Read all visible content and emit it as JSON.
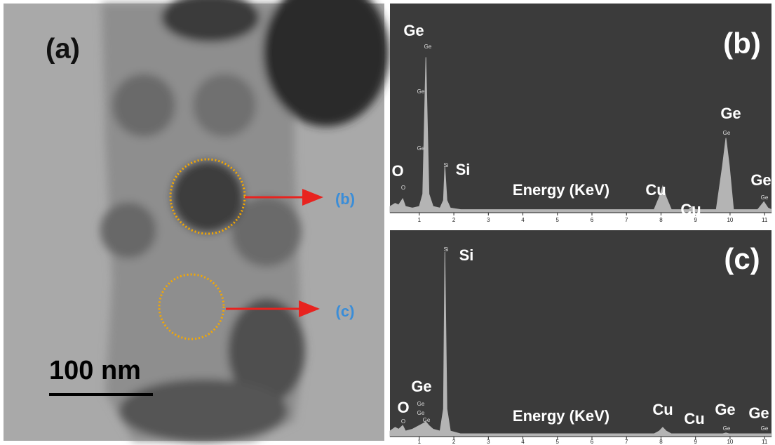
{
  "image": {
    "label": "(a)",
    "scale_bar": "100 nm",
    "markers": [
      "(b)",
      "(c)"
    ]
  },
  "chart_data": [
    {
      "type": "area",
      "panel_label": "(b)",
      "xlabel": "Energy (KeV)",
      "color": "#b4b4b4",
      "background": "#3b3b3b",
      "x": [
        0.15,
        0.3,
        0.4,
        0.52,
        0.6,
        0.8,
        1.0,
        1.1,
        1.19,
        1.28,
        1.4,
        1.6,
        1.7,
        1.74,
        1.8,
        1.9,
        2.2,
        3,
        4,
        5,
        6,
        7,
        7.8,
        7.95,
        8.05,
        8.15,
        8.3,
        8.8,
        8.9,
        9.0,
        9.6,
        9.78,
        9.88,
        9.98,
        10.1,
        10.8,
        10.98,
        11.1,
        11.2
      ],
      "values": [
        4,
        6,
        5,
        9,
        4,
        3,
        4,
        12,
        100,
        12,
        4,
        3,
        8,
        30,
        8,
        3,
        2,
        2,
        2,
        2,
        2,
        2,
        2,
        10,
        17,
        10,
        2,
        2,
        4,
        2,
        2,
        30,
        48,
        30,
        2,
        2,
        7,
        3,
        2
      ],
      "xlim": [
        0.15,
        11.2
      ],
      "xticks": [
        1,
        2,
        3,
        4,
        5,
        6,
        7,
        8,
        9,
        10,
        11
      ],
      "ylim": [
        0,
        130
      ],
      "labels": [
        "Ge",
        "O",
        "Si",
        "Cu",
        "Cu",
        "Ge",
        "Ge"
      ],
      "peak_labels": [
        "Ge",
        "Ge",
        "Ge",
        "Si",
        "O",
        "Ge",
        "Ge"
      ]
    },
    {
      "type": "area",
      "panel_label": "(c)",
      "xlabel": "Energy (KeV)",
      "color": "#b4b4b4",
      "background": "#3b3b3b",
      "x": [
        0.15,
        0.3,
        0.4,
        0.52,
        0.6,
        0.8,
        1.0,
        1.1,
        1.19,
        1.28,
        1.4,
        1.6,
        1.7,
        1.74,
        1.8,
        1.9,
        2.2,
        3,
        4,
        5,
        6,
        7,
        7.8,
        7.95,
        8.05,
        8.15,
        8.3,
        8.8,
        8.9,
        9.0,
        9.6,
        9.78,
        9.88,
        9.98,
        10.1,
        10.8,
        10.98,
        11.1,
        11.2
      ],
      "values": [
        3,
        5,
        4,
        6,
        3,
        4,
        6,
        7,
        8,
        6,
        4,
        3,
        15,
        100,
        15,
        3,
        1.5,
        1.5,
        1.5,
        1.5,
        1.5,
        1.5,
        1.5,
        3,
        5,
        3,
        1.5,
        1.5,
        1.5,
        1.5,
        1.5,
        1.5,
        2,
        1.5,
        1.5,
        1.5,
        1.5,
        1.5,
        1.5
      ],
      "xlim": [
        0.15,
        11.2
      ],
      "xticks": [
        1,
        2,
        3,
        4,
        5,
        6,
        7,
        8,
        9,
        10,
        11
      ],
      "ylim": [
        0,
        108
      ],
      "labels": [
        "Si",
        "Ge",
        "O",
        "Cu",
        "Cu",
        "Ge",
        "Ge"
      ],
      "peak_labels": [
        "Si",
        "Ge",
        "Ge",
        "Ge",
        "O",
        "Ge",
        "Ge"
      ]
    }
  ]
}
